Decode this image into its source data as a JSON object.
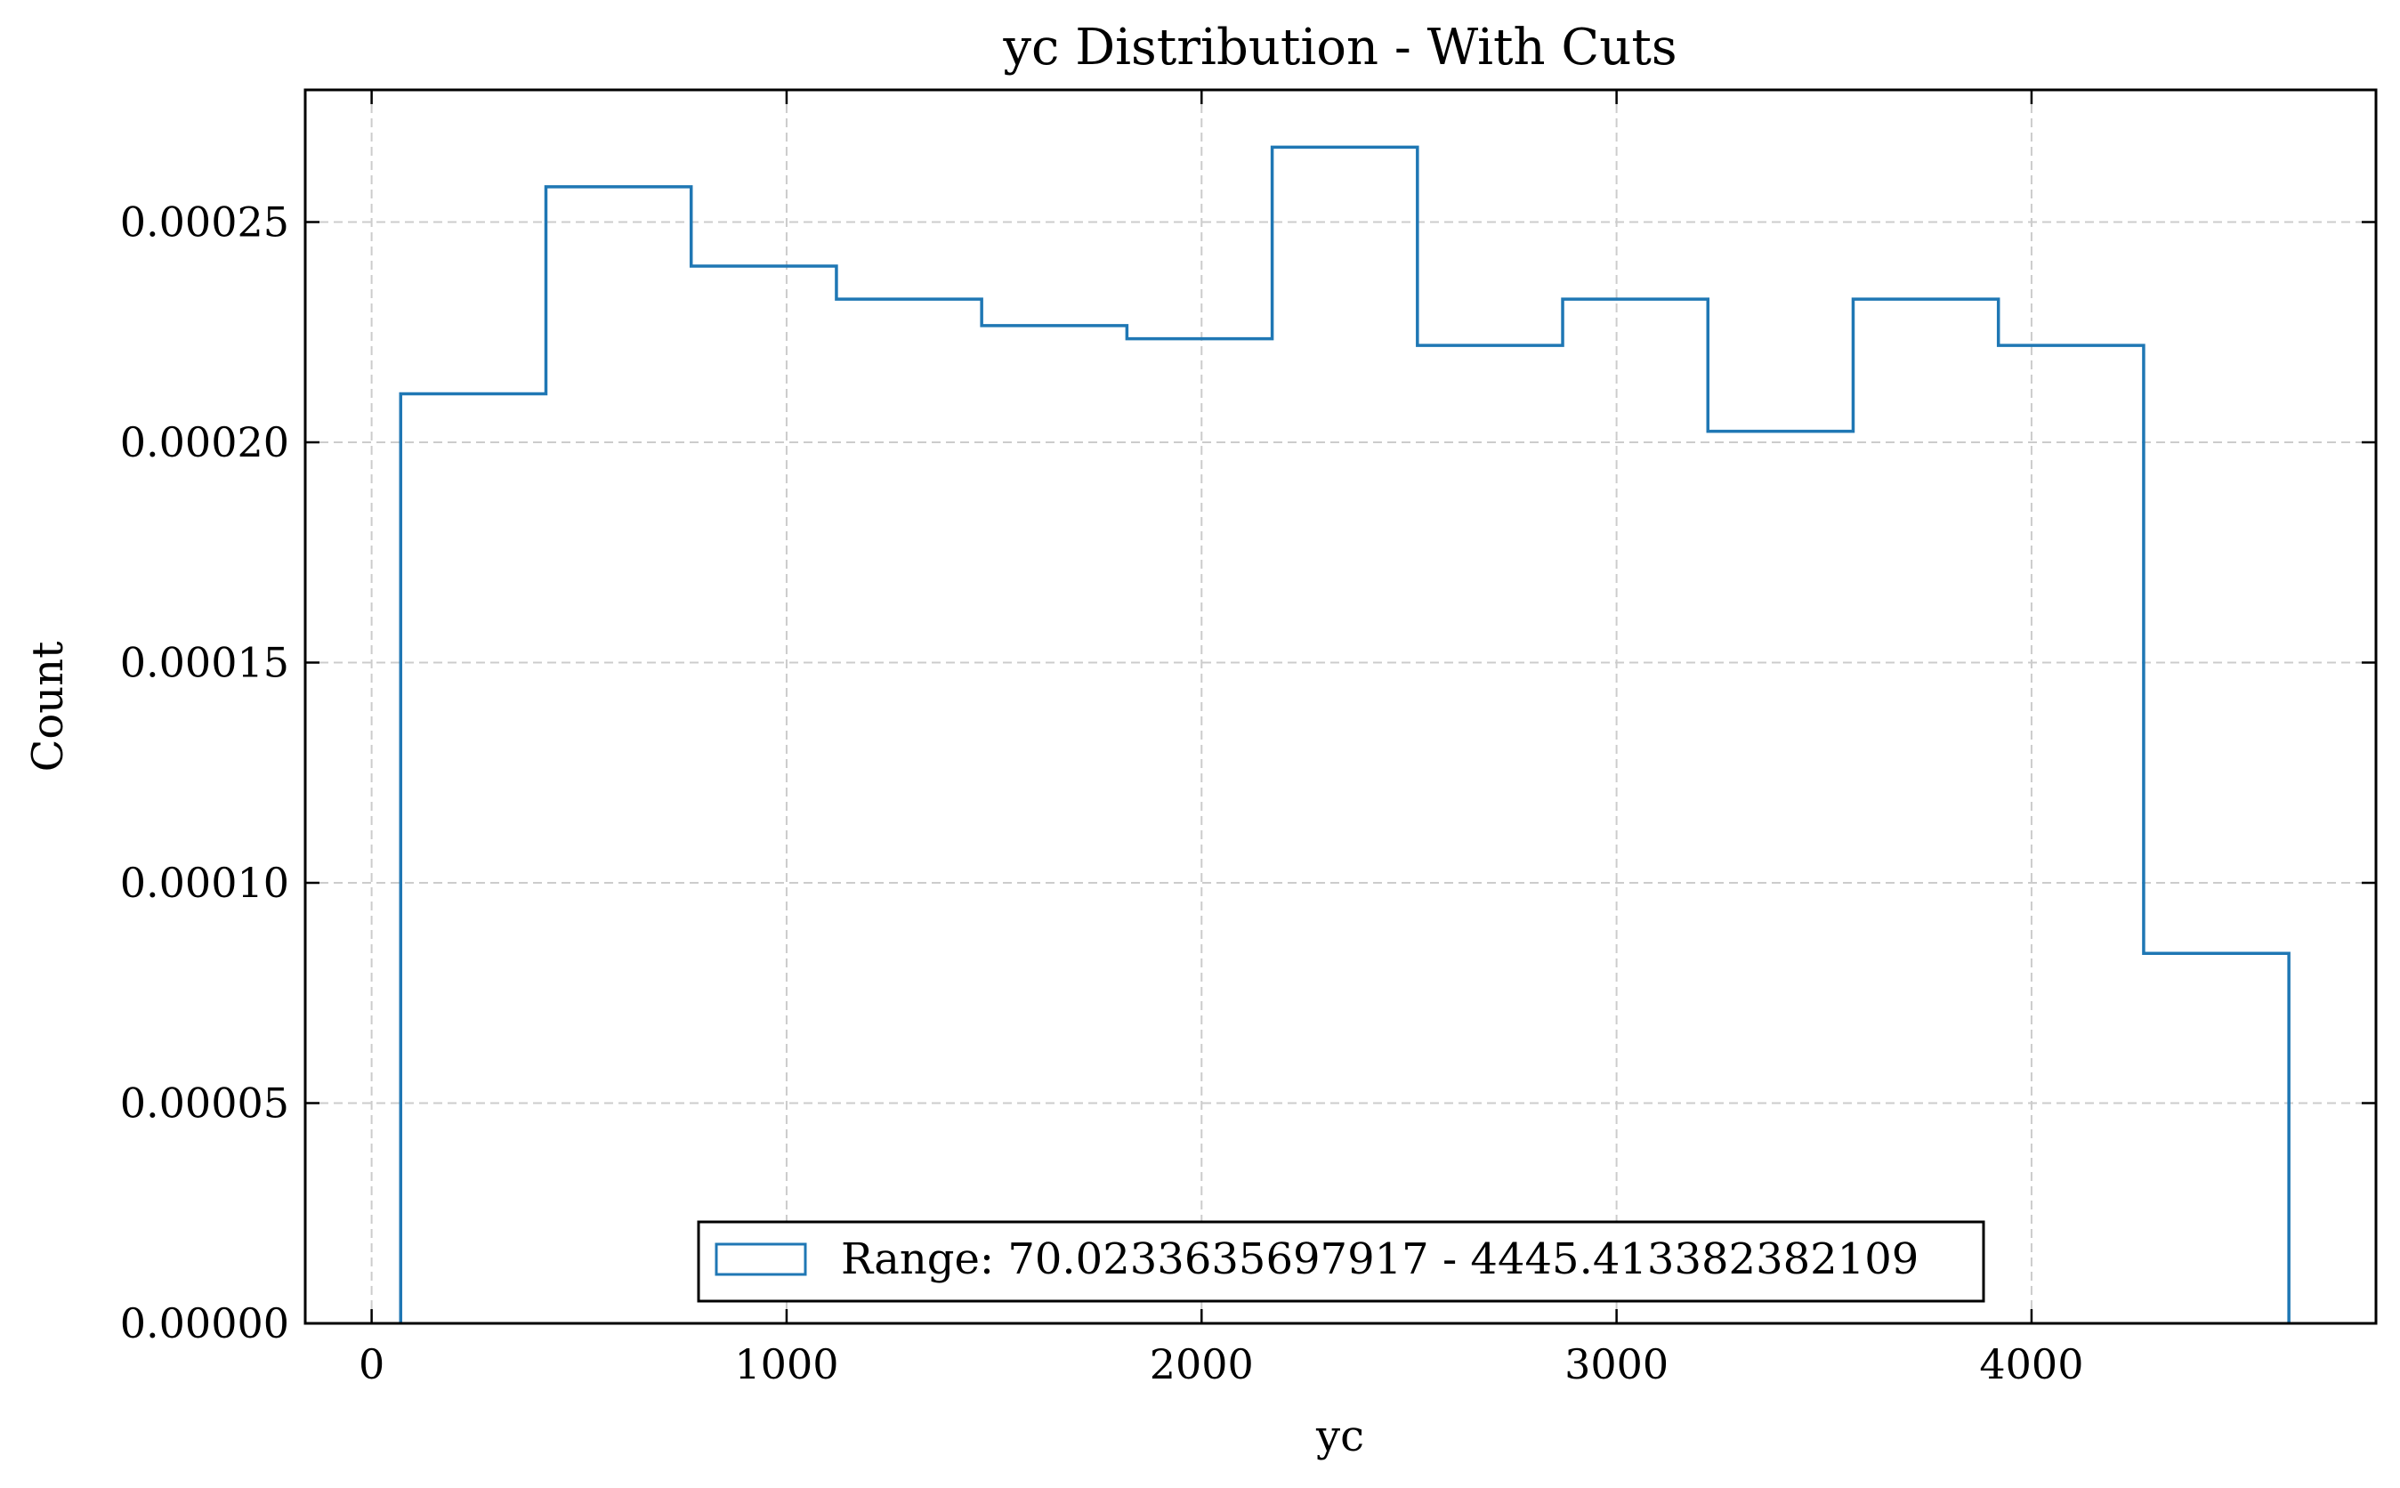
{
  "chart_data": {
    "type": "histogram",
    "title": "yc Distribution - With Cuts",
    "xlabel": "yc",
    "ylabel": "Count",
    "xlim": [
      -160,
      4830
    ],
    "ylim": [
      0,
      0.00028
    ],
    "xticks": [
      0,
      1000,
      2000,
      3000,
      4000
    ],
    "xtick_labels": [
      "0",
      "1000",
      "2000",
      "3000",
      "4000"
    ],
    "yticks": [
      0,
      5e-05,
      0.0001,
      0.00015,
      0.0002,
      0.00025
    ],
    "ytick_labels": [
      "0.00000",
      "0.00005",
      "0.00010",
      "0.00015",
      "0.00020",
      "0.00025"
    ],
    "grid": true,
    "legend_position": "lower center",
    "colors": {
      "series": "#1f77b4",
      "grid": "#cccccc",
      "axes": "#000000"
    },
    "series": [
      {
        "name": "Range: 70.0233635697917 - 4445.413382382109",
        "bin_edges": [
          70.0234,
          420.0326,
          770.0418,
          1120.051,
          1470.0602,
          1820.0694,
          2170.0786,
          2520.0878,
          2870.097,
          3220.1062,
          3570.1154,
          3920.1246,
          4270.1338,
          4620.143
        ],
        "values": [
          0.000211,
          0.000258,
          0.00024,
          0.0002325,
          0.0002265,
          0.0002235,
          0.000267,
          0.000222,
          0.0002325,
          0.0002025,
          0.0002325,
          0.000222,
          8.4e-05
        ]
      }
    ]
  }
}
